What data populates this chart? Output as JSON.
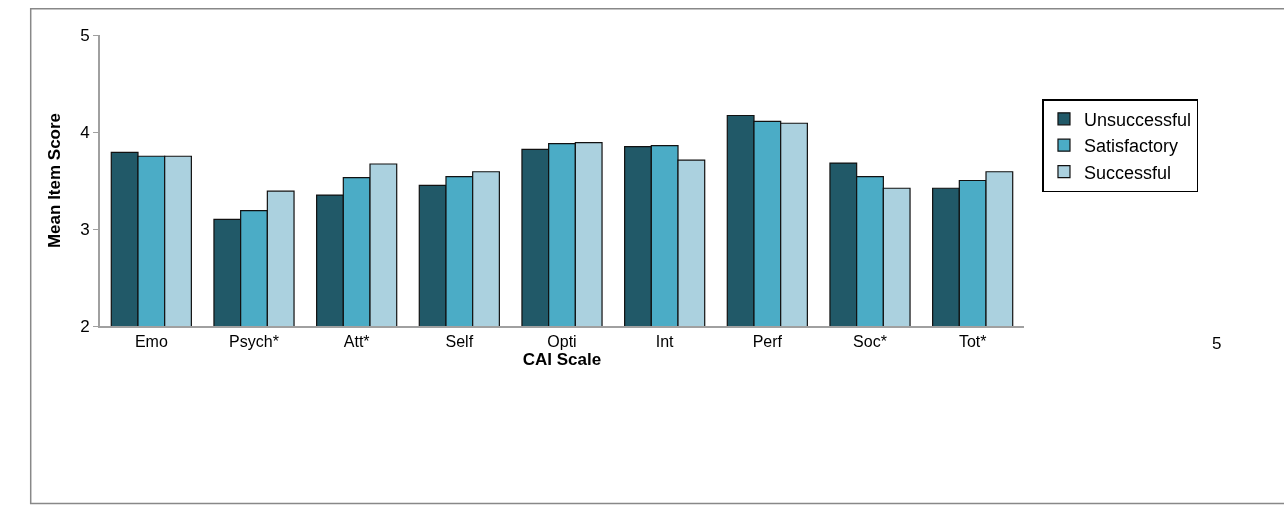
{
  "chart_data": {
    "type": "bar",
    "xlabel": "CAI Scale",
    "ylabel": "Mean Item Score",
    "categories": [
      "Emo",
      "Psych*",
      "Att*",
      "Self",
      "Opti",
      "Int",
      "Perf",
      "Soc*",
      "Tot*"
    ],
    "series": [
      {
        "name": "Unsuccessful",
        "color": "#215968",
        "values": [
          3.79,
          3.1,
          3.35,
          3.45,
          3.82,
          3.85,
          4.17,
          3.68,
          3.42
        ]
      },
      {
        "name": "Satisfactory",
        "color": "#4bacc6",
        "values": [
          3.75,
          3.19,
          3.53,
          3.54,
          3.88,
          3.86,
          4.11,
          3.54,
          3.5
        ]
      },
      {
        "name": "Successful",
        "color": "#abd1df",
        "values": [
          3.75,
          3.39,
          3.67,
          3.59,
          3.89,
          3.71,
          4.09,
          3.42,
          3.59
        ]
      }
    ],
    "ylim": [
      2,
      5
    ],
    "yticks": [
      2,
      3,
      4,
      5
    ],
    "grid": false,
    "legend": "right",
    "annotations": [
      "5"
    ]
  }
}
